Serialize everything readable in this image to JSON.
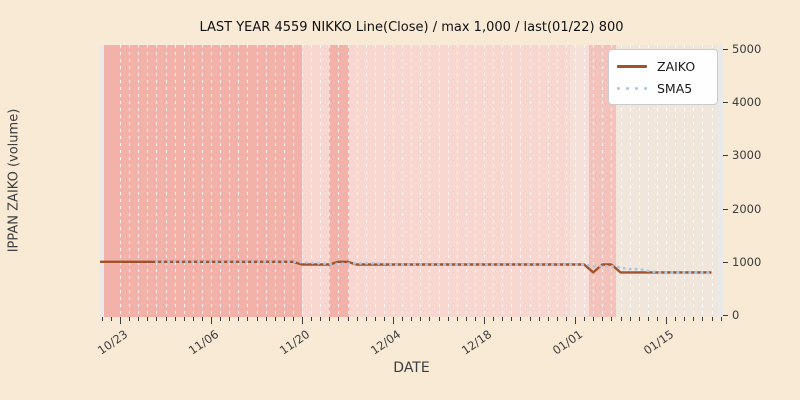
{
  "title": "LAST YEAR 4559 NIKKO Line(Close) / max 1,000 / last(01/22) 800",
  "axes": {
    "x_label": "DATE",
    "y_label": "IPPAN ZAIKO (volume)"
  },
  "legend": {
    "items": [
      {
        "label": "ZAIKO",
        "color": "#a0522d",
        "style": "solid"
      },
      {
        "label": "SMA5",
        "color": "#a9c7e3",
        "style": "dotted"
      }
    ]
  },
  "colors": {
    "figure_bg": "#f8ead5",
    "plot_bg": "#e9e9e9",
    "grid_dash": "#ffffff",
    "tick_text": "#3d3d3d"
  },
  "chart_data": {
    "type": "line",
    "title": "LAST YEAR 4559 NIKKO Line(Close) / max 1,000 / last(01/22) 800",
    "xlabel": "DATE",
    "ylabel": "IPPAN ZAIKO (volume)",
    "ylim": [
      0,
      5000
    ],
    "y_ticks": [
      0,
      1000,
      2000,
      3000,
      4000,
      5000
    ],
    "x_ticks": [
      {
        "label": "10/23",
        "day": 0
      },
      {
        "label": "11/06",
        "day": 10
      },
      {
        "label": "11/20",
        "day": 20
      },
      {
        "label": "12/04",
        "day": 30
      },
      {
        "label": "12/18",
        "day": 40
      },
      {
        "label": "01/01",
        "day": 50
      },
      {
        "label": "01/15",
        "day": 60
      }
    ],
    "days_total": 66,
    "last_point": {
      "date": "01/22",
      "value": 800
    },
    "max_value": 1000,
    "series": [
      {
        "name": "ZAIKO",
        "color": "#a0522d",
        "style": "solid",
        "values": [
          1000,
          1000,
          1000,
          1000,
          1000,
          1000,
          1000,
          1000,
          1000,
          1000,
          1000,
          1000,
          1000,
          1000,
          1000,
          1000,
          1000,
          1000,
          1000,
          1000,
          950,
          950,
          950,
          950,
          1000,
          1000,
          950,
          950,
          950,
          950,
          950,
          950,
          950,
          950,
          950,
          950,
          950,
          950,
          950,
          950,
          950,
          950,
          950,
          950,
          950,
          950,
          950,
          950,
          950,
          950,
          950,
          950,
          800,
          950,
          950,
          800,
          800,
          800,
          800,
          800,
          800,
          800,
          800,
          800,
          800,
          800
        ]
      },
      {
        "name": "SMA5",
        "color": "#a9c7e3",
        "style": "dotted",
        "values": [
          null,
          null,
          null,
          null,
          1000,
          1000,
          1000,
          1000,
          1000,
          1000,
          1000,
          1000,
          1000,
          1000,
          1000,
          1000,
          1000,
          1000,
          1000,
          1000,
          990,
          980,
          970,
          960,
          960,
          970,
          970,
          970,
          970,
          960,
          950,
          950,
          950,
          950,
          950,
          950,
          950,
          950,
          950,
          950,
          950,
          950,
          950,
          950,
          950,
          950,
          950,
          950,
          950,
          950,
          950,
          950,
          920,
          920,
          920,
          890,
          860,
          860,
          830,
          800,
          800,
          800,
          800,
          800,
          800,
          800
        ]
      }
    ],
    "background_bands": [
      {
        "start_day": -1.8,
        "end_day": 20,
        "color": "#f2b1a9"
      },
      {
        "start_day": 20,
        "end_day": 23,
        "color": "#f8d7d0"
      },
      {
        "start_day": 23,
        "end_day": 25.2,
        "color": "#f2b1a9"
      },
      {
        "start_day": 25.2,
        "end_day": 49.5,
        "color": "#f8d7d0"
      },
      {
        "start_day": 49.5,
        "end_day": 51.5,
        "color": "#f6e1da"
      },
      {
        "start_day": 51.5,
        "end_day": 54.5,
        "color": "#f3c3bb"
      },
      {
        "start_day": 54.5,
        "end_day": 65.6,
        "color": "#f0e6db"
      }
    ]
  }
}
